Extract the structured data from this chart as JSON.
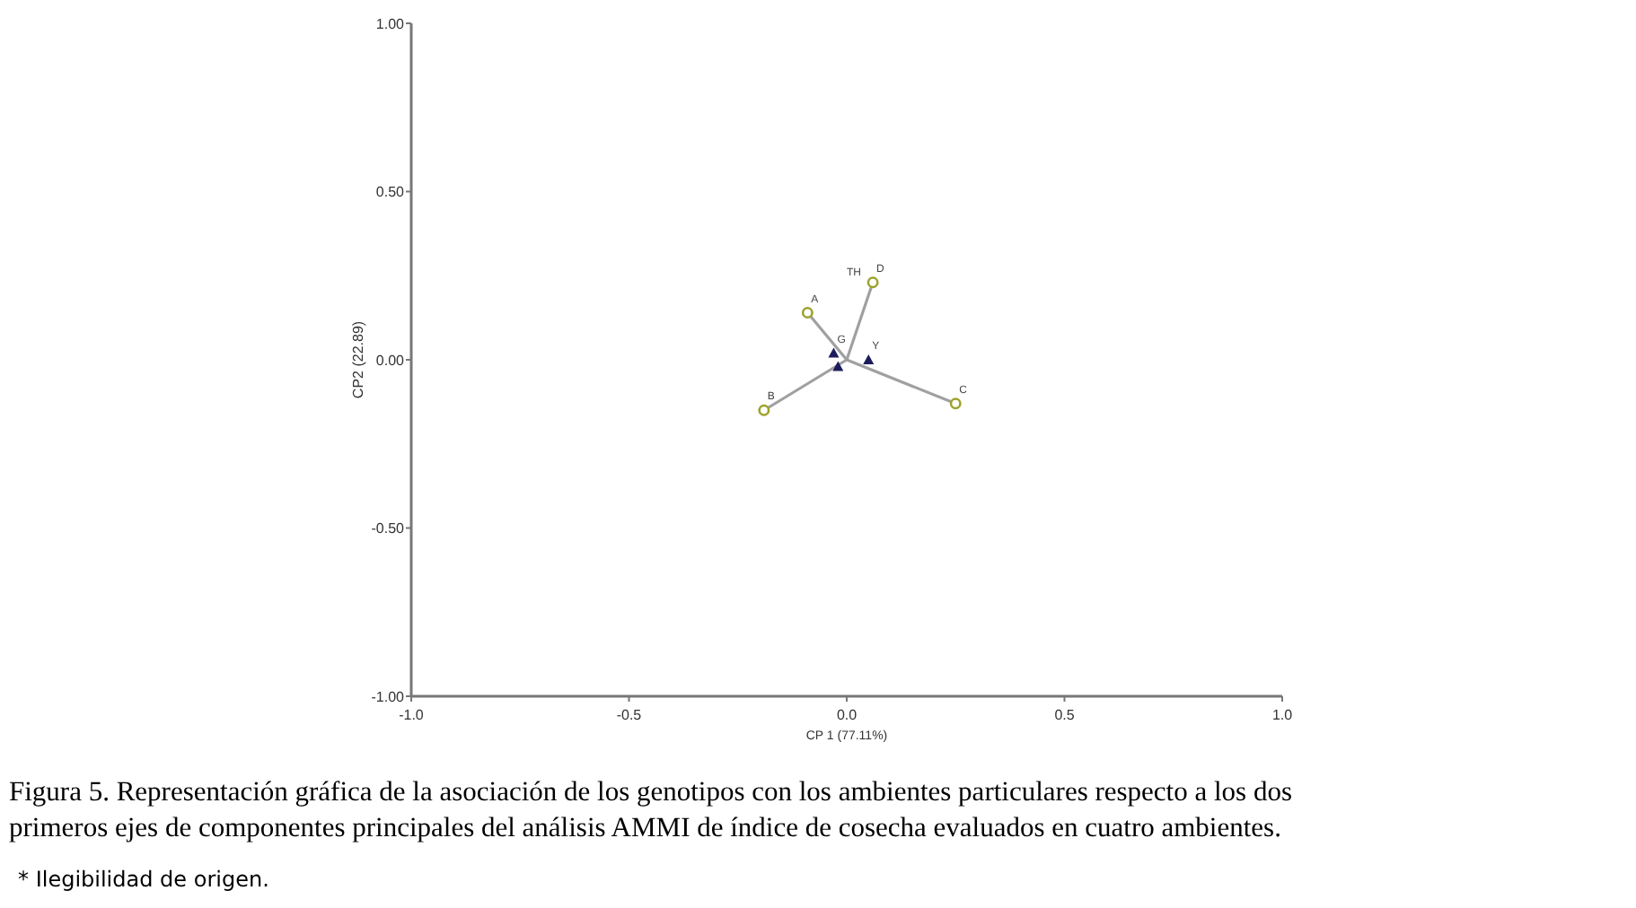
{
  "chart_data": {
    "type": "scatter",
    "xlabel": "CP 1 (77.11%)",
    "ylabel": "CP2 (22.89)",
    "xlim": [
      -1,
      1
    ],
    "ylim": [
      -1,
      1
    ],
    "xticks": [
      {
        "value": -1,
        "label": "-1.0"
      },
      {
        "value": -0.5,
        "label": "-0.5"
      },
      {
        "value": 0,
        "label": "0.0"
      },
      {
        "value": 0.5,
        "label": "0.5"
      },
      {
        "value": 1,
        "label": "1.0"
      }
    ],
    "yticks": [
      {
        "value": -1,
        "label": "-1.00"
      },
      {
        "value": -0.5,
        "label": "-0.50"
      },
      {
        "value": 0,
        "label": "0.00"
      },
      {
        "value": 0.5,
        "label": "0.50"
      },
      {
        "value": 1,
        "label": "1.00"
      }
    ],
    "grid": false,
    "series": [
      {
        "type": "line",
        "color": "#a0a0a0",
        "x": [
          0,
          -0.09
        ],
        "values": [
          0,
          0.14
        ],
        "marker": "none"
      },
      {
        "type": "line",
        "color": "#a0a0a0",
        "x": [
          0,
          0.06
        ],
        "values": [
          0,
          0.23
        ],
        "marker": "none"
      },
      {
        "type": "line",
        "color": "#a0a0a0",
        "x": [
          0,
          -0.19
        ],
        "values": [
          0,
          -0.15
        ],
        "marker": "none"
      },
      {
        "type": "line",
        "color": "#a0a0a0",
        "x": [
          0,
          0.25
        ],
        "values": [
          0,
          -0.13
        ],
        "marker": "none"
      },
      {
        "color": "#9ca32c",
        "x": [
          -0.09,
          0.06,
          -0.19,
          0.25
        ],
        "values": [
          0.14,
          0.23,
          -0.15,
          -0.13
        ],
        "marker": "circle"
      },
      {
        "color": "#1c1c5c",
        "x": [
          -0.03,
          -0.02,
          0.05
        ],
        "values": [
          0.02,
          -0.02,
          0.0
        ],
        "marker": "triangle"
      }
    ],
    "annotations": [
      {
        "text": "A",
        "x": -0.09,
        "y": 0.14
      },
      {
        "text": "D",
        "x": 0.06,
        "y": 0.23
      },
      {
        "text": "B",
        "x": -0.19,
        "y": -0.15
      },
      {
        "text": "C",
        "x": 0.25,
        "y": -0.13
      },
      {
        "text": "G",
        "x": -0.03,
        "y": 0.02
      },
      {
        "text": "Y",
        "x": 0.05,
        "y": 0.0
      },
      "TH",
      "Figura 5.  Representación gráfica de la asociación de los genotipos con los  ambientes particulares respecto a los dos primeros ejes de componentes principales del análisis AMMI de índice de cosecha evaluados en cuatro ambientes.",
      "* Ilegibilidad de origen."
    ]
  }
}
